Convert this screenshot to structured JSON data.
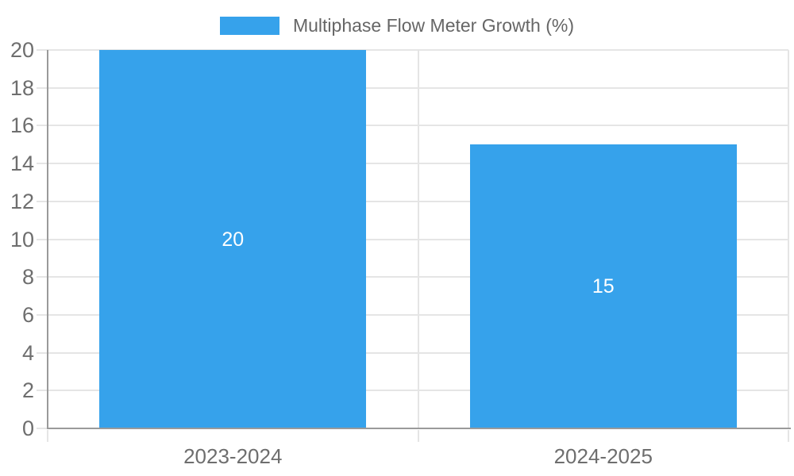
{
  "chart_data": {
    "type": "bar",
    "series_name": "Multiphase Flow Meter Growth (%)",
    "categories": [
      "2023-2024",
      "2024-2025"
    ],
    "values": [
      20,
      15
    ],
    "bar_value_labels": [
      "20",
      "15"
    ],
    "ylim": [
      0,
      20
    ],
    "ytick_step": 2,
    "yticks": [
      0,
      2,
      4,
      6,
      8,
      10,
      12,
      14,
      16,
      18,
      20
    ],
    "grid": true,
    "legend_position": "top-center",
    "bar_to_category_width_ratio": 0.72
  },
  "colors": {
    "bar": "#36A2EB",
    "grid": "#e5e5e5",
    "axis_line": "#9a9a9a",
    "tick_label": "#6e6e6e",
    "legend_text": "#666666",
    "bar_value_label": "#ffffff",
    "background": "#ffffff"
  }
}
